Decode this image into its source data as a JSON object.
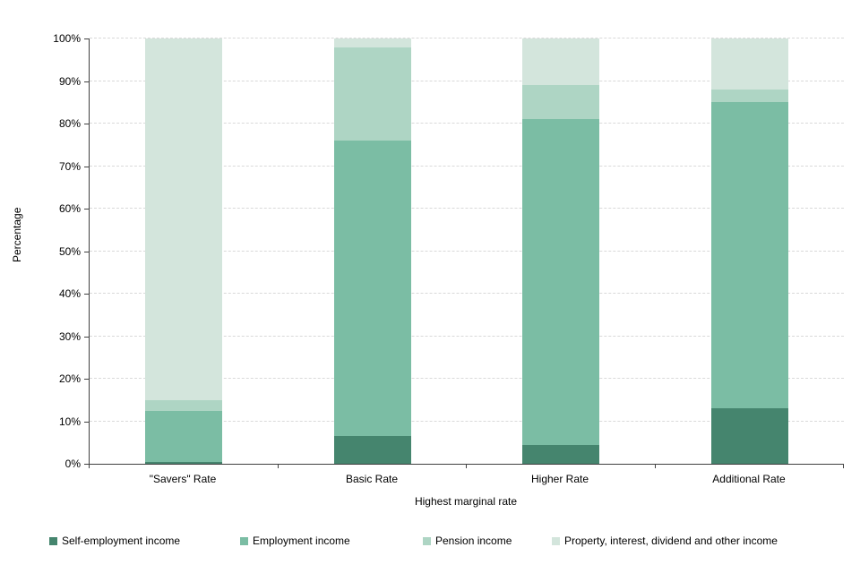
{
  "chart_data": {
    "type": "bar",
    "stacked": true,
    "title": "",
    "xlabel": "Highest marginal rate",
    "ylabel": "Percentage",
    "categories": [
      "\"Savers\" Rate",
      "Basic Rate",
      "Higher Rate",
      "Additional Rate"
    ],
    "series": [
      {
        "name": "Self-employment income",
        "color": "#45856E",
        "values": [
          0.5,
          6.5,
          4.5,
          13
        ]
      },
      {
        "name": "Employment income",
        "color": "#7BBDA4",
        "values": [
          12,
          69.5,
          76.5,
          72
        ]
      },
      {
        "name": "Pension income",
        "color": "#AED5C4",
        "values": [
          2.5,
          22,
          8,
          3
        ]
      },
      {
        "name": "Property, interest, dividend and other income",
        "color": "#D3E5DC",
        "values": [
          85,
          2,
          11,
          12
        ]
      }
    ],
    "ylim": [
      0,
      100
    ],
    "yticks": [
      "0%",
      "10%",
      "20%",
      "30%",
      "40%",
      "50%",
      "60%",
      "70%",
      "80%",
      "90%",
      "100%"
    ],
    "grid": true,
    "legend_position": "bottom",
    "axis_color": "#404040",
    "gridline_color": "#D9D9D9"
  }
}
